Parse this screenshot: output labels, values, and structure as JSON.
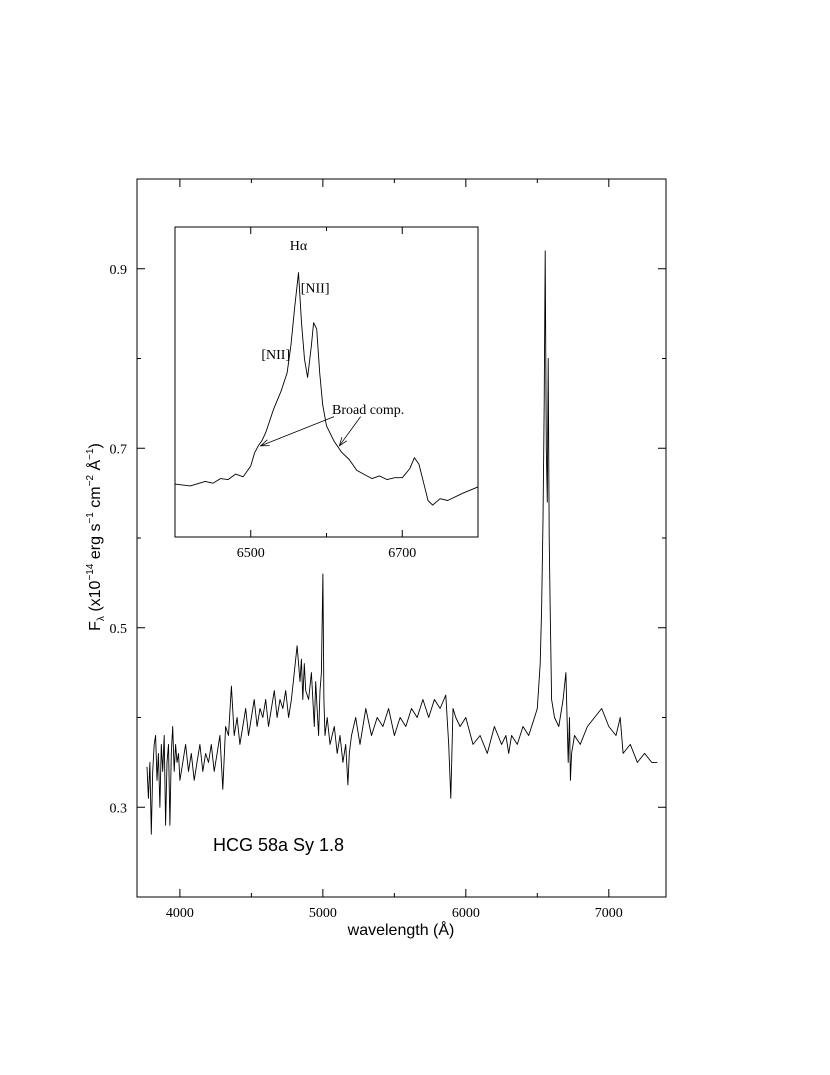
{
  "chart_data": [
    {
      "type": "line",
      "title": "",
      "xlabel": "wavelength (Å)",
      "ylabel": {
        "base": "F",
        "sub": "λ",
        "prefix": " (x10",
        "exp1": "−14",
        "u1": " erg s",
        "exp2": "−1",
        "u2": " cm",
        "exp3": "−2",
        "u3": " Å",
        "exp4": "−1",
        "close": ")"
      },
      "xlim": [
        3700,
        7400
      ],
      "ylim": [
        0.2,
        1.0
      ],
      "xticks": [
        4000,
        5000,
        6000,
        7000
      ],
      "xtick_labels": [
        "4000",
        "5000",
        "6000",
        "7000"
      ],
      "yticks": [
        0.3,
        0.5,
        0.7,
        0.9
      ],
      "ytick_labels": [
        "0.3",
        "0.5",
        "0.7",
        "0.9"
      ],
      "annotation": "HCG 58a Sy 1.8",
      "series": [
        {
          "x": [
            3770,
            3780,
            3790,
            3800,
            3810,
            3820,
            3830,
            3840,
            3850,
            3860,
            3870,
            3880,
            3890,
            3900,
            3910,
            3920,
            3930,
            3940,
            3950,
            3960,
            3970,
            3980,
            3990,
            4000,
            4020,
            4040,
            4060,
            4080,
            4100,
            4120,
            4140,
            4160,
            4180,
            4200,
            4220,
            4240,
            4260,
            4280,
            4300,
            4320,
            4340,
            4360,
            4380,
            4400,
            4420,
            4440,
            4460,
            4480,
            4500,
            4520,
            4540,
            4560,
            4580,
            4600,
            4620,
            4640,
            4660,
            4680,
            4700,
            4720,
            4740,
            4760,
            4780,
            4800,
            4820,
            4840,
            4850,
            4860,
            4870,
            4880,
            4900,
            4920,
            4940,
            4950,
            4960,
            4970,
            4980,
            4990,
            5000,
            5007,
            5015,
            5030,
            5050,
            5080,
            5100,
            5120,
            5140,
            5160,
            5175,
            5185,
            5200,
            5230,
            5260,
            5300,
            5340,
            5380,
            5420,
            5460,
            5500,
            5540,
            5580,
            5620,
            5660,
            5700,
            5740,
            5780,
            5820,
            5860,
            5880,
            5895,
            5910,
            5930,
            5960,
            6000,
            6050,
            6100,
            6150,
            6200,
            6250,
            6280,
            6300,
            6320,
            6360,
            6400,
            6440,
            6480,
            6500,
            6520,
            6530,
            6540,
            6548,
            6555,
            6563,
            6570,
            6576,
            6583,
            6590,
            6600,
            6620,
            6650,
            6680,
            6700,
            6716,
            6725,
            6731,
            6740,
            6760,
            6800,
            6850,
            6900,
            6950,
            7000,
            7050,
            7080,
            7100,
            7150,
            7200,
            7250,
            7300,
            7340
          ],
          "y": [
            0.345,
            0.31,
            0.35,
            0.27,
            0.34,
            0.37,
            0.38,
            0.33,
            0.36,
            0.3,
            0.37,
            0.34,
            0.38,
            0.28,
            0.35,
            0.37,
            0.28,
            0.36,
            0.39,
            0.34,
            0.37,
            0.35,
            0.36,
            0.33,
            0.35,
            0.37,
            0.34,
            0.36,
            0.33,
            0.35,
            0.37,
            0.34,
            0.36,
            0.35,
            0.37,
            0.34,
            0.36,
            0.38,
            0.32,
            0.39,
            0.38,
            0.435,
            0.38,
            0.4,
            0.37,
            0.39,
            0.41,
            0.38,
            0.4,
            0.42,
            0.39,
            0.41,
            0.4,
            0.42,
            0.39,
            0.41,
            0.43,
            0.4,
            0.42,
            0.41,
            0.43,
            0.4,
            0.42,
            0.45,
            0.48,
            0.44,
            0.465,
            0.42,
            0.46,
            0.43,
            0.42,
            0.45,
            0.39,
            0.44,
            0.41,
            0.38,
            0.43,
            0.45,
            0.56,
            0.42,
            0.38,
            0.4,
            0.37,
            0.39,
            0.36,
            0.38,
            0.35,
            0.37,
            0.325,
            0.36,
            0.38,
            0.4,
            0.37,
            0.41,
            0.38,
            0.4,
            0.39,
            0.41,
            0.38,
            0.4,
            0.39,
            0.41,
            0.4,
            0.42,
            0.4,
            0.42,
            0.41,
            0.425,
            0.37,
            0.31,
            0.41,
            0.4,
            0.39,
            0.4,
            0.37,
            0.38,
            0.36,
            0.39,
            0.37,
            0.38,
            0.36,
            0.38,
            0.37,
            0.39,
            0.38,
            0.4,
            0.41,
            0.46,
            0.52,
            0.62,
            0.75,
            0.92,
            0.7,
            0.64,
            0.8,
            0.6,
            0.52,
            0.42,
            0.4,
            0.39,
            0.42,
            0.45,
            0.35,
            0.4,
            0.33,
            0.36,
            0.38,
            0.37,
            0.39,
            0.4,
            0.41,
            0.39,
            0.38,
            0.4,
            0.36,
            0.37,
            0.35,
            0.36,
            0.35,
            0.35
          ]
        }
      ]
    },
    {
      "type": "line",
      "title": "",
      "xlim": [
        6400,
        6800
      ],
      "ylim": [
        0.62,
        0.96
      ],
      "xticks": [
        6500,
        6700
      ],
      "xtick_labels": [
        "6500",
        "6700"
      ],
      "annotations": [
        {
          "text": "Hα",
          "x": 6563,
          "y": 0.935
        },
        {
          "text": "[NII]",
          "x": 6585,
          "y": 0.888
        },
        {
          "text": "[NII]",
          "x": 6533,
          "y": 0.815
        },
        {
          "text": "Broad comp.",
          "x": 6655,
          "y": 0.755
        }
      ],
      "arrows": [
        {
          "from_x": 6610,
          "from_y": 0.752,
          "to_x": 6513,
          "to_y": 0.72
        },
        {
          "from_x": 6645,
          "from_y": 0.752,
          "to_x": 6617,
          "to_y": 0.72
        }
      ],
      "series": [
        {
          "x": [
            6400,
            6420,
            6440,
            6450,
            6460,
            6470,
            6480,
            6490,
            6500,
            6505,
            6510,
            6515,
            6520,
            6530,
            6540,
            6548,
            6553,
            6558,
            6563,
            6567,
            6571,
            6575,
            6580,
            6583,
            6587,
            6591,
            6595,
            6600,
            6610,
            6620,
            6630,
            6640,
            6660,
            6670,
            6680,
            6690,
            6700,
            6710,
            6716,
            6722,
            6728,
            6734,
            6740,
            6750,
            6760,
            6780,
            6800
          ],
          "y": [
            0.678,
            0.676,
            0.681,
            0.679,
            0.684,
            0.683,
            0.689,
            0.686,
            0.698,
            0.712,
            0.72,
            0.726,
            0.735,
            0.76,
            0.78,
            0.8,
            0.83,
            0.872,
            0.91,
            0.855,
            0.815,
            0.795,
            0.83,
            0.855,
            0.848,
            0.8,
            0.765,
            0.742,
            0.725,
            0.713,
            0.705,
            0.693,
            0.684,
            0.687,
            0.683,
            0.685,
            0.685,
            0.695,
            0.707,
            0.7,
            0.68,
            0.66,
            0.655,
            0.662,
            0.66,
            0.668,
            0.675
          ]
        }
      ]
    }
  ]
}
